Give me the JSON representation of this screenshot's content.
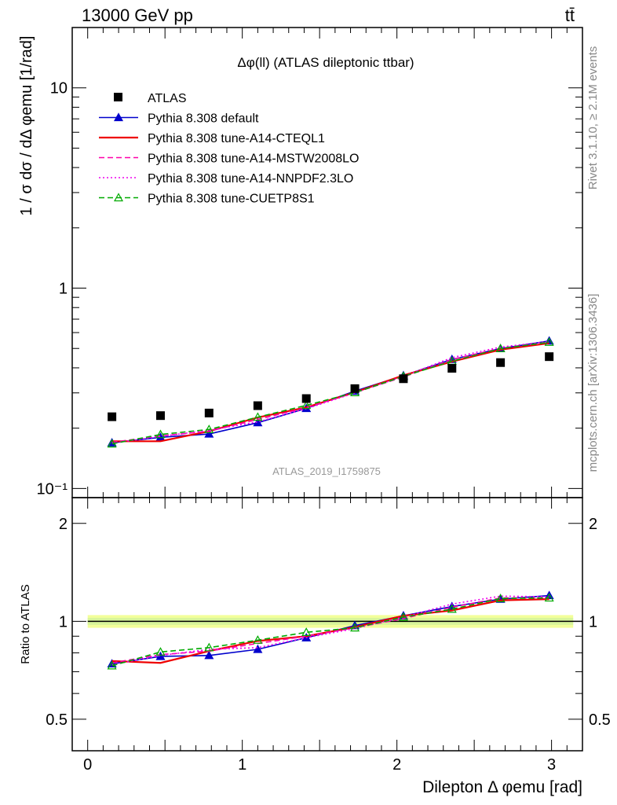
{
  "header": {
    "left": "13000 GeV pp",
    "right": "tt̄"
  },
  "side": {
    "rivet": "Rivet 3.1.10, ≥ 2.1M events",
    "mcplots": "mcplots.cern.ch [arXiv:1306.3436]"
  },
  "chart_data": [
    {
      "type": "line",
      "title": "Δφ(ll) (ATLAS dileptonic ttbar)",
      "ylabel": "1 / σ  dσ / dΔ φemu [1/rad]",
      "yscale": "log",
      "ylim": [
        0.09,
        20
      ],
      "xlim": [
        -0.1,
        3.2
      ],
      "yticks": [
        {
          "v": 10,
          "label": "10"
        },
        {
          "v": 1,
          "label": "1"
        },
        {
          "v": 0.1,
          "label": "10⁻¹"
        }
      ],
      "watermark": "ATLAS_2019_I1759875",
      "x": [
        0.157,
        0.471,
        0.785,
        1.1,
        1.414,
        1.728,
        2.042,
        2.356,
        2.67,
        2.985
      ],
      "data": {
        "name": "ATLAS",
        "values": [
          0.228,
          0.231,
          0.238,
          0.259,
          0.281,
          0.315,
          0.353,
          0.398,
          0.425,
          0.455
        ]
      },
      "series": [
        {
          "name": "Pythia 8.308 default",
          "color": "#0000cc",
          "marker": "filled-triangle",
          "dash": "solid",
          "values": [
            0.169,
            0.18,
            0.187,
            0.213,
            0.251,
            0.306,
            0.366,
            0.441,
            0.499,
            0.545
          ]
        },
        {
          "name": "Pythia 8.308 tune-A14-CTEQL1",
          "color": "#ee0000",
          "marker": "none",
          "dash": "solid",
          "values": [
            0.172,
            0.172,
            0.193,
            0.226,
            0.254,
            0.302,
            0.367,
            0.43,
            0.493,
            0.531
          ]
        },
        {
          "name": "Pythia 8.308 tune-A14-MSTW2008LO",
          "color": "#ff00aa",
          "marker": "none",
          "dash": "dashed",
          "values": [
            0.17,
            0.183,
            0.193,
            0.221,
            0.253,
            0.301,
            0.36,
            0.44,
            0.501,
            0.538
          ]
        },
        {
          "name": "Pythia 8.308 tune-A14-NNPDF2.3LO",
          "color": "#ee00ee",
          "marker": "none",
          "dash": "dotted",
          "values": [
            0.168,
            0.182,
            0.195,
            0.215,
            0.25,
            0.3,
            0.363,
            0.45,
            0.508,
            0.542
          ]
        },
        {
          "name": "Pythia 8.308 tune-CUETP8S1",
          "color": "#00aa00",
          "marker": "open-triangle",
          "dash": "dashed",
          "values": [
            0.167,
            0.186,
            0.197,
            0.227,
            0.26,
            0.301,
            0.363,
            0.432,
            0.499,
            0.537
          ]
        }
      ]
    },
    {
      "type": "line",
      "ylabel": "Ratio to ATLAS",
      "xlabel": "Dilepton Δ φemu [rad]",
      "yscale": "log",
      "ylim": [
        0.4,
        2.4
      ],
      "xlim": [
        -0.1,
        3.2
      ],
      "xticks": [
        0,
        1,
        2,
        3
      ],
      "yticks": [
        {
          "v": 2,
          "label": "2"
        },
        {
          "v": 1,
          "label": "1"
        },
        {
          "v": 0.5,
          "label": "0.5"
        }
      ],
      "reference": 1,
      "x": [
        0.157,
        0.471,
        0.785,
        1.1,
        1.414,
        1.728,
        2.042,
        2.356,
        2.67,
        2.985
      ],
      "series": [
        {
          "name": "Pythia 8.308 default",
          "values": [
            0.74,
            0.78,
            0.785,
            0.82,
            0.89,
            0.97,
            1.04,
            1.11,
            1.17,
            1.2
          ]
        },
        {
          "name": "Pythia 8.308 tune-A14-CTEQL1",
          "values": [
            0.755,
            0.745,
            0.81,
            0.87,
            0.9,
            0.96,
            1.04,
            1.08,
            1.16,
            1.17
          ]
        },
        {
          "name": "Pythia 8.308 tune-A14-MSTW2008LO",
          "values": [
            0.745,
            0.79,
            0.81,
            0.855,
            0.9,
            0.955,
            1.02,
            1.105,
            1.18,
            1.18
          ]
        },
        {
          "name": "Pythia 8.308 tune-A14-NNPDF2.3LO",
          "values": [
            0.735,
            0.785,
            0.82,
            0.83,
            0.89,
            0.95,
            1.03,
            1.13,
            1.195,
            1.19
          ]
        },
        {
          "name": "Pythia 8.308 tune-CUETP8S1",
          "values": [
            0.73,
            0.805,
            0.83,
            0.875,
            0.925,
            0.955,
            1.03,
            1.09,
            1.175,
            1.18
          ]
        }
      ]
    }
  ]
}
